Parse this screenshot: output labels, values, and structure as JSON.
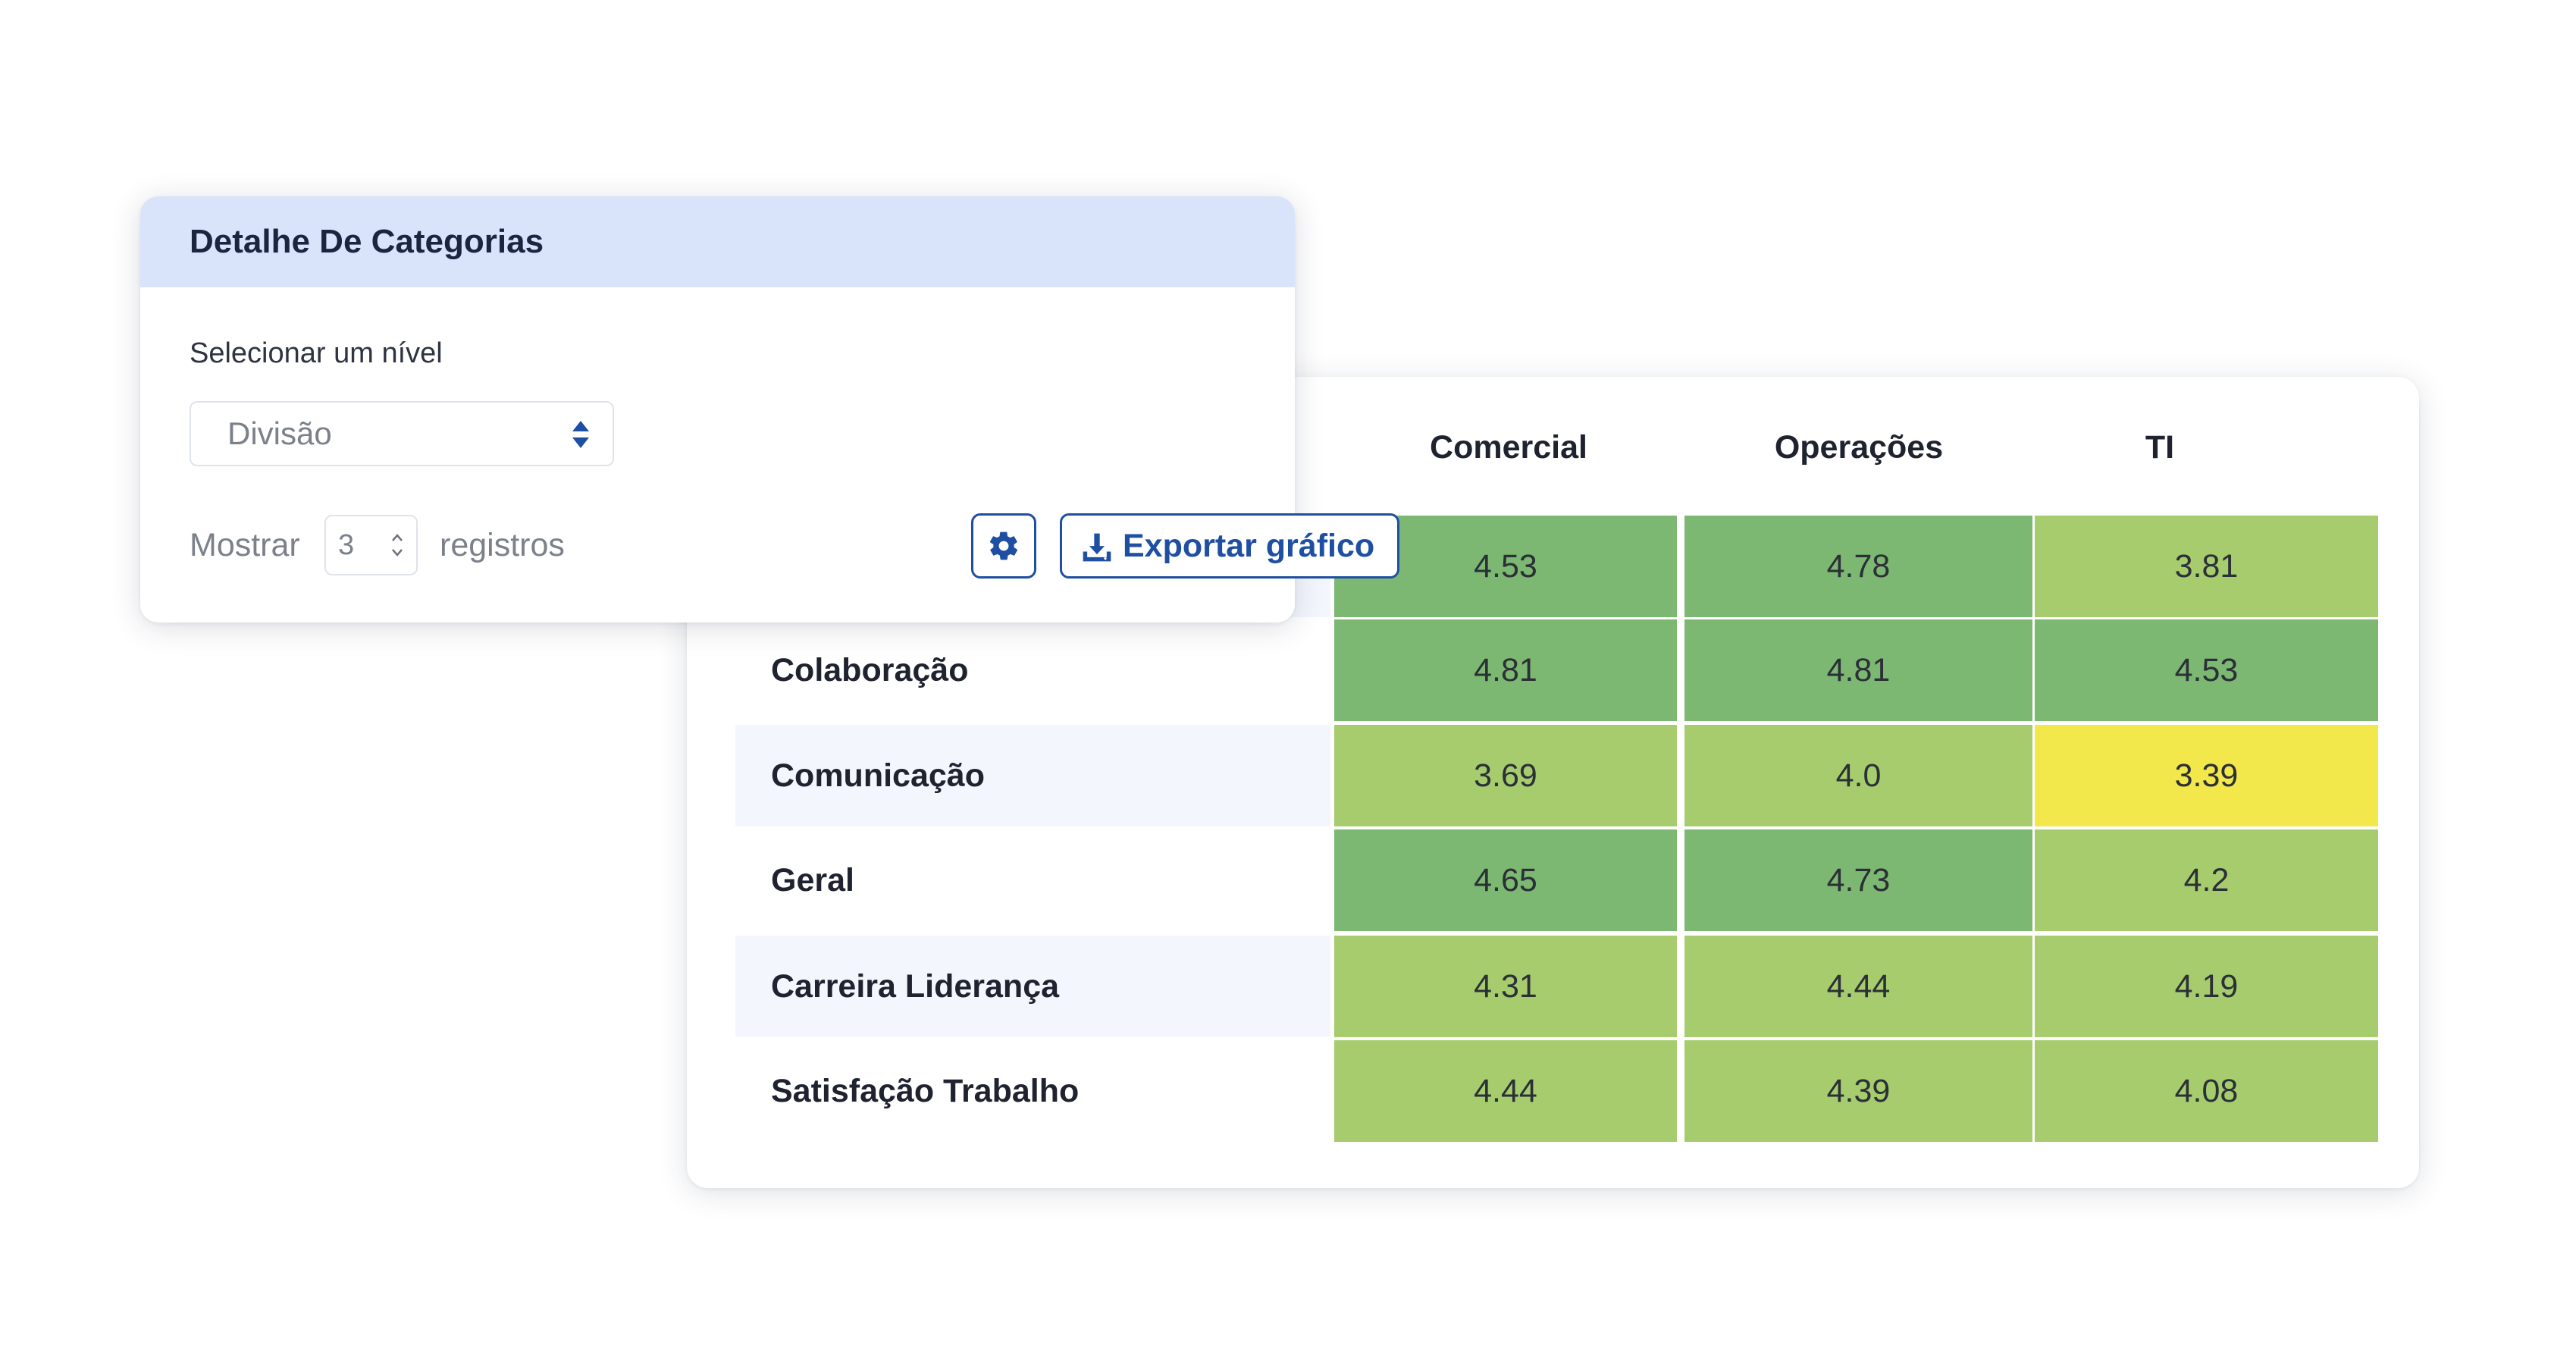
{
  "panel": {
    "title": "Detalhe De Categorias",
    "level_label": "Selecionar um nível",
    "level_value": "Divisão",
    "show_label": "Mostrar",
    "show_count": "3",
    "records_label": "registros",
    "export_label": "Exportar gráfico",
    "settings_icon": "gear-icon",
    "export_icon": "download-icon"
  },
  "table": {
    "columns": [
      "Comercial",
      "Operações",
      "TI"
    ],
    "rows": [
      {
        "label": "",
        "values": [
          "4.53",
          "4.78",
          "3.81"
        ],
        "colors": [
          "#7db873",
          "#7db873",
          "#a7cc6e"
        ]
      },
      {
        "label": "Colaboração",
        "values": [
          "4.81",
          "4.81",
          "4.53"
        ],
        "colors": [
          "#7db873",
          "#7db873",
          "#7db873"
        ]
      },
      {
        "label": "Comunicação",
        "values": [
          "3.69",
          "4.0",
          "3.39"
        ],
        "colors": [
          "#a7cc6e",
          "#a7cc6e",
          "#f2e84c"
        ]
      },
      {
        "label": "Geral",
        "values": [
          "4.65",
          "4.73",
          "4.2"
        ],
        "colors": [
          "#7db873",
          "#7db873",
          "#a7cc6e"
        ]
      },
      {
        "label": "Carreira Liderança",
        "values": [
          "4.31",
          "4.44",
          "4.19"
        ],
        "colors": [
          "#a7cc6e",
          "#a7cc6e",
          "#a7cc6e"
        ]
      },
      {
        "label": "Satisfação Trabalho",
        "values": [
          "4.44",
          "4.39",
          "4.08"
        ],
        "colors": [
          "#a7cc6e",
          "#a7cc6e",
          "#a7cc6e"
        ]
      }
    ]
  }
}
